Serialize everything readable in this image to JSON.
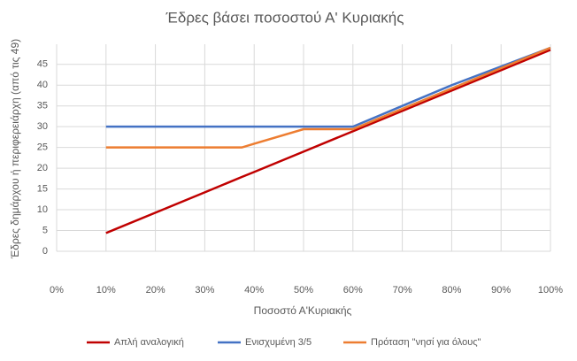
{
  "chart_data": {
    "type": "line",
    "title": "Έδρες βάσει ποσοστού Α' Κυριακής",
    "x_label": "Ποσοστό Α'Κυριακής",
    "y_label": "Έδρες δημάρχου ή περιφερειάρχη (από τις 49)",
    "x": [
      10,
      20,
      30,
      37.5,
      40,
      50,
      60,
      70,
      80,
      90,
      100
    ],
    "series": [
      {
        "name": "Απλή αναλογική",
        "color": "#c00000",
        "values": [
          4.4,
          9.3,
          14.2,
          17.9,
          19.1,
          24,
          28.9,
          33.8,
          38.7,
          43.6,
          48.5
        ]
      },
      {
        "name": "Ενισχυμένη 3/5",
        "color": "#4472c4",
        "values": [
          30,
          30,
          30,
          30,
          30,
          30,
          30,
          35,
          40,
          44.5,
          49
        ]
      },
      {
        "name": "Πρόταση \"νησί για όλους\"",
        "color": "#ed7d31",
        "values": [
          25,
          25,
          25,
          25,
          25.9,
          29.4,
          29.4,
          34.3,
          39.2,
          44.1,
          49
        ]
      }
    ],
    "xlim": [
      0,
      100
    ],
    "xticks": [
      {
        "value": 0,
        "label": "0%"
      },
      {
        "value": 10,
        "label": "10%"
      },
      {
        "value": 20,
        "label": "20%"
      },
      {
        "value": 30,
        "label": "30%"
      },
      {
        "value": 40,
        "label": "40%"
      },
      {
        "value": 50,
        "label": "50%"
      },
      {
        "value": 60,
        "label": "60%"
      },
      {
        "value": 70,
        "label": "70%"
      },
      {
        "value": 80,
        "label": "80%"
      },
      {
        "value": 90,
        "label": "90%"
      },
      {
        "value": 100,
        "label": "100%"
      }
    ],
    "ylim": [
      0,
      49
    ],
    "yticks": [
      0,
      5,
      10,
      15,
      20,
      25,
      30,
      35,
      40,
      45
    ],
    "grid": true,
    "legend": "bottom"
  }
}
